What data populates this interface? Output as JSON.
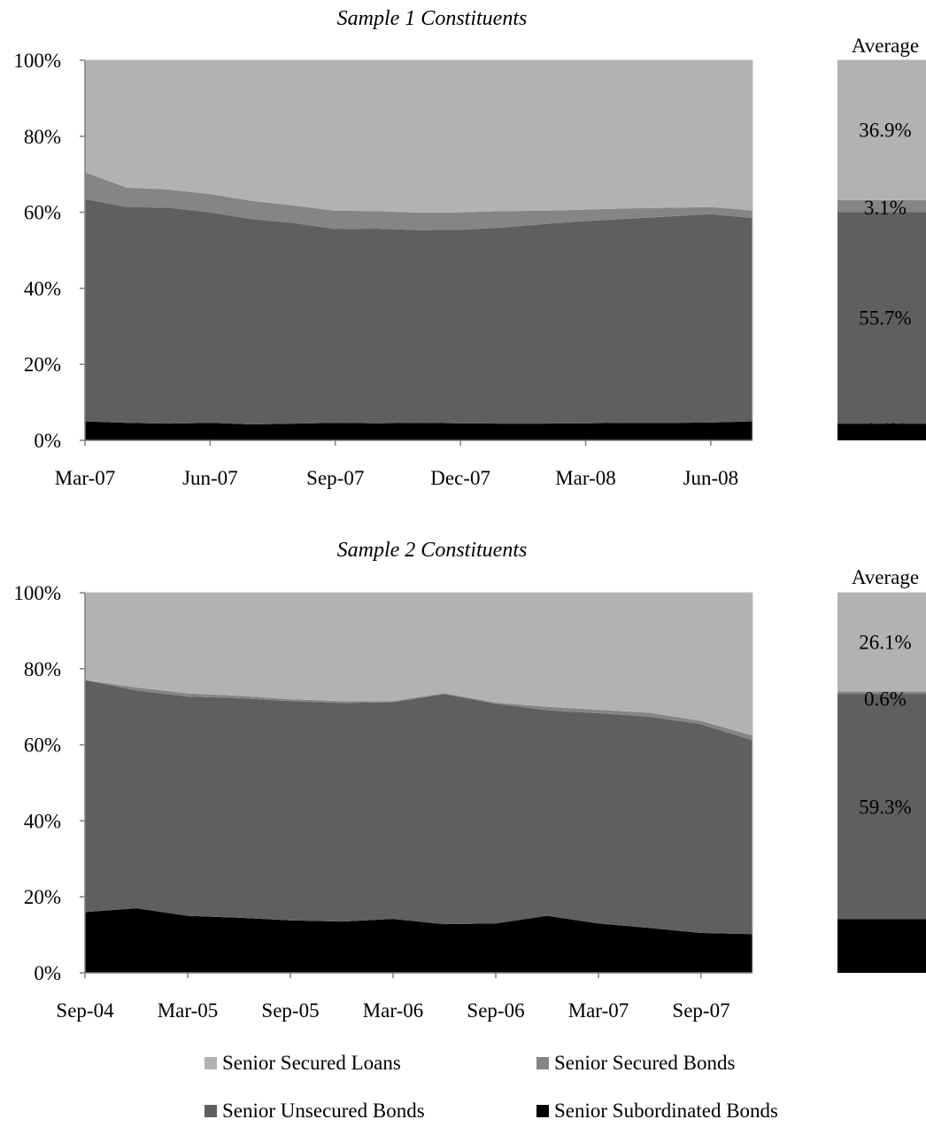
{
  "chart_data": [
    {
      "type": "area",
      "title": "Sample 1 Constituents",
      "x_ticks": [
        "Mar-07",
        "Jun-07",
        "Sep-07",
        "Dec-07",
        "Mar-08",
        "Jun-08"
      ],
      "ylim": [
        0,
        100
      ],
      "y_ticks": [
        "0%",
        "20%",
        "40%",
        "60%",
        "80%",
        "100%"
      ],
      "x": [
        "Mar-07",
        "Apr-07",
        "May-07",
        "Jun-07",
        "Jul-07",
        "Aug-07",
        "Sep-07",
        "Oct-07",
        "Nov-07",
        "Dec-07",
        "Jan-08",
        "Feb-08",
        "Mar-08",
        "Apr-08",
        "May-08",
        "Jun-08",
        "Jul-08"
      ],
      "series": [
        {
          "name": "Senior Subordinated Bonds",
          "color": "#000000",
          "values": [
            5.0,
            4.6,
            4.4,
            4.6,
            4.2,
            4.4,
            4.6,
            4.5,
            4.6,
            4.5,
            4.4,
            4.4,
            4.5,
            4.6,
            4.6,
            4.7,
            5.0
          ]
        },
        {
          "name": "Senior Unsecured Bonds",
          "color": "#5f5f5f",
          "values": [
            58.5,
            56.8,
            56.8,
            55.4,
            54.0,
            52.8,
            51.0,
            51.2,
            50.7,
            50.9,
            51.6,
            52.5,
            53.2,
            53.7,
            54.3,
            54.8,
            53.5
          ]
        },
        {
          "name": "Senior Secured Bonds",
          "color": "#858585",
          "values": [
            7.0,
            5.1,
            4.8,
            4.8,
            4.8,
            4.6,
            4.8,
            4.6,
            4.6,
            4.6,
            4.3,
            3.5,
            3.0,
            2.7,
            2.3,
            1.9,
            2.0
          ]
        },
        {
          "name": "Senior Secured Loans",
          "color": "#b2b2b2",
          "values": [
            29.5,
            33.5,
            34.0,
            35.2,
            37.0,
            38.2,
            39.6,
            39.7,
            40.1,
            40.0,
            39.7,
            39.6,
            39.3,
            39.0,
            38.8,
            38.6,
            39.5
          ]
        }
      ],
      "average": {
        "label": "Average",
        "values": [
          4.4,
          55.7,
          3.1,
          36.9
        ],
        "labels": [
          "4.4%",
          "55.7%",
          "3.1%",
          "36.9%"
        ]
      }
    },
    {
      "type": "area",
      "title": "Sample 2 Constituents",
      "x_ticks": [
        "Sep-04",
        "Mar-05",
        "Sep-05",
        "Mar-06",
        "Sep-06",
        "Mar-07",
        "Sep-07"
      ],
      "ylim": [
        0,
        100
      ],
      "y_ticks": [
        "0%",
        "20%",
        "40%",
        "60%",
        "80%",
        "100%"
      ],
      "x": [
        "Sep-04",
        "Dec-04",
        "Mar-05",
        "Jun-05",
        "Sep-05",
        "Dec-05",
        "Mar-06",
        "Jun-06",
        "Sep-06",
        "Dec-06",
        "Mar-07",
        "Jun-07",
        "Sep-07",
        "Dec-07"
      ],
      "series": [
        {
          "name": "Senior Subordinated Bonds",
          "color": "#000000",
          "values": [
            16.0,
            17.0,
            15.0,
            14.5,
            13.8,
            13.5,
            14.2,
            12.8,
            13.0,
            15.0,
            13.0,
            11.8,
            10.5,
            10.2
          ]
        },
        {
          "name": "Senior Unsecured Bonds",
          "color": "#5f5f5f",
          "values": [
            61.0,
            57.3,
            57.7,
            57.8,
            57.7,
            57.5,
            57.0,
            60.5,
            57.8,
            54.1,
            55.3,
            55.6,
            54.9,
            51.0
          ]
        },
        {
          "name": "Senior Secured Bonds",
          "color": "#858585",
          "values": [
            0.0,
            0.8,
            0.8,
            0.6,
            0.5,
            0.5,
            0.3,
            0.3,
            0.3,
            0.9,
            0.9,
            1.0,
            0.9,
            1.2
          ]
        },
        {
          "name": "Senior Secured Loans",
          "color": "#b2b2b2",
          "values": [
            23.0,
            24.9,
            26.5,
            27.1,
            28.0,
            28.5,
            28.5,
            26.4,
            28.9,
            30.0,
            30.8,
            31.6,
            33.7,
            37.6
          ]
        }
      ],
      "average": {
        "label": "Average",
        "values": [
          14.1,
          59.3,
          0.6,
          26.1
        ],
        "labels": [
          "14.1%",
          "59.3%",
          "0.6%",
          "26.1%"
        ]
      }
    }
  ],
  "legend": {
    "items": [
      {
        "label": "Senior Secured Loans",
        "color": "#b2b2b2"
      },
      {
        "label": "Senior Secured Bonds",
        "color": "#858585"
      },
      {
        "label": "Senior Unsecured Bonds",
        "color": "#5f5f5f"
      },
      {
        "label": "Senior Subordinated Bonds",
        "color": "#000000"
      }
    ]
  }
}
